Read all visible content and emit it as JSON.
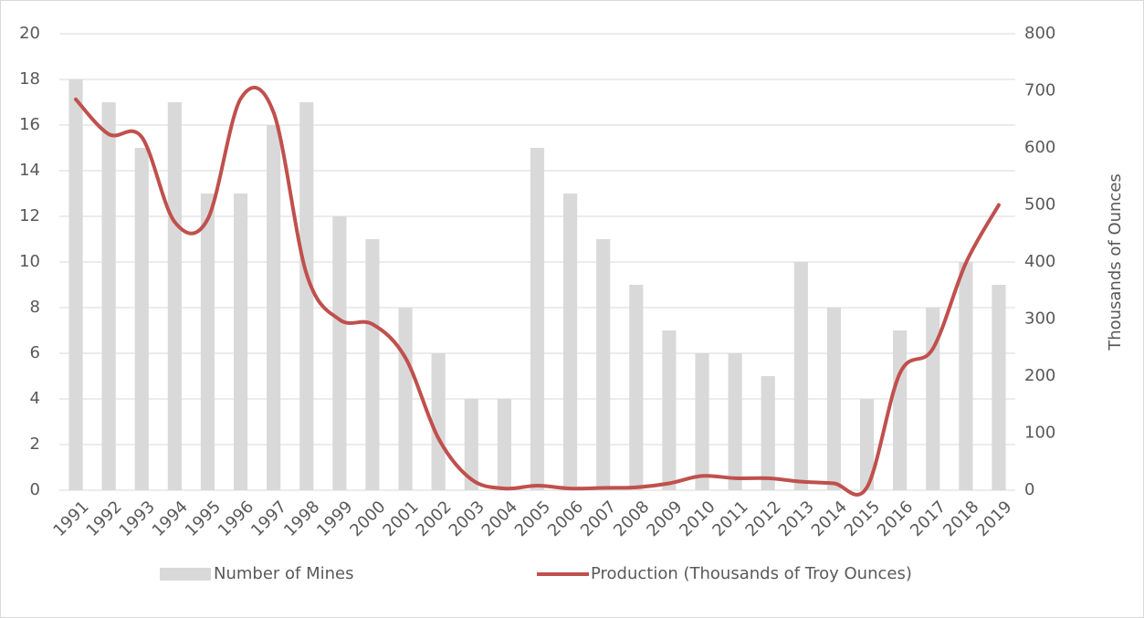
{
  "chart_data": {
    "type": "bar-line",
    "categories": [
      "1991",
      "1992",
      "1993",
      "1994",
      "1995",
      "1996",
      "1997",
      "1998",
      "1999",
      "2000",
      "2001",
      "2002",
      "2003",
      "2004",
      "2005",
      "2006",
      "2007",
      "2008",
      "2009",
      "2010",
      "2011",
      "2012",
      "2013",
      "2014",
      "2015",
      "2016",
      "2017",
      "2018",
      "2019"
    ],
    "series": [
      {
        "name": "Number of Mines",
        "type": "bar",
        "color": "#d9d9d9",
        "axis": "y",
        "values": [
          18,
          17,
          15,
          17,
          13,
          13,
          16,
          17,
          12,
          11,
          8,
          6,
          4,
          4,
          15,
          13,
          11,
          9,
          7,
          6,
          6,
          5,
          10,
          8,
          4,
          7,
          8,
          10,
          9
        ]
      },
      {
        "name": "Production (Thousands of Troy Ounces)",
        "type": "line",
        "color": "#c0504d",
        "axis": "y2",
        "values": [
          685,
          624,
          619,
          470,
          475,
          686,
          662,
          379,
          299,
          291,
          232,
          91,
          19,
          3,
          8,
          3,
          4,
          5,
          12,
          25,
          21,
          21,
          15,
          12,
          5,
          205,
          248,
          398,
          500
        ]
      }
    ],
    "ylim": [
      0,
      20
    ],
    "yticks": [
      0,
      2,
      4,
      6,
      8,
      10,
      12,
      14,
      16,
      18,
      20
    ],
    "y2lim": [
      0,
      800
    ],
    "y2ticks": [
      0,
      100,
      200,
      300,
      400,
      500,
      600,
      700,
      800
    ],
    "y2label": "Thousands of Ounces",
    "grid": true,
    "legend": "bottom"
  }
}
